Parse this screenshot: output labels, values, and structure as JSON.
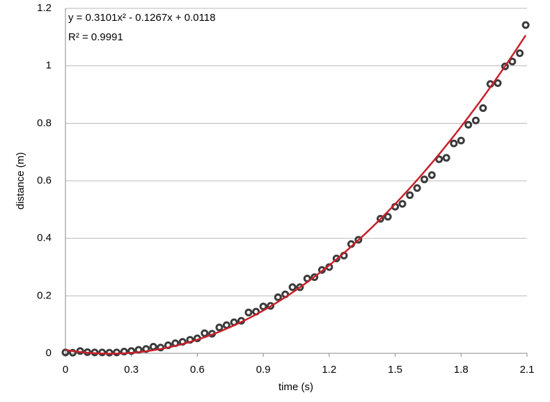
{
  "chart_data": {
    "type": "scatter",
    "equation": "y = 0.3101x² - 0.1267x + 0.0118",
    "r_squared": "R² = 0.9991",
    "x_label": "time (s)",
    "y_label": "distance (m)",
    "series": [
      {
        "color": "#3a3a3a",
        "x": [
          0,
          0.033,
          0.067,
          0.1,
          0.133,
          0.167,
          0.2,
          0.233,
          0.267,
          0.3,
          0.333,
          0.367,
          0.4,
          0.433,
          0.467,
          0.5,
          0.533,
          0.567,
          0.6,
          0.633,
          0.667,
          0.7,
          0.733,
          0.767,
          0.8,
          0.833,
          0.867,
          0.9,
          0.933,
          0.967,
          1.0,
          1.033,
          1.067,
          1.1,
          1.133,
          1.167,
          1.2,
          1.233,
          1.267,
          1.3,
          1.333,
          1.433,
          1.467,
          1.5,
          1.533,
          1.567,
          1.6,
          1.633,
          1.667,
          1.7,
          1.733,
          1.767,
          1.8,
          1.833,
          1.867,
          1.9,
          1.933,
          1.967,
          2.0,
          2.033,
          2.067,
          2.094
        ],
        "values": [
          0.003,
          0.002,
          0.008,
          0.004,
          0.003,
          0.003,
          0.002,
          0.003,
          0.006,
          0.008,
          0.012,
          0.015,
          0.023,
          0.02,
          0.028,
          0.035,
          0.04,
          0.047,
          0.052,
          0.07,
          0.068,
          0.09,
          0.098,
          0.108,
          0.113,
          0.142,
          0.145,
          0.163,
          0.165,
          0.195,
          0.205,
          0.23,
          0.23,
          0.26,
          0.265,
          0.29,
          0.3,
          0.33,
          0.34,
          0.38,
          0.395,
          0.468,
          0.475,
          0.51,
          0.52,
          0.55,
          0.575,
          0.605,
          0.62,
          0.675,
          0.68,
          0.73,
          0.74,
          0.795,
          0.81,
          0.853,
          0.937,
          0.94,
          0.998,
          1.015,
          1.044,
          1.142
        ]
      }
    ],
    "trendline": {
      "color": "#c8202a",
      "coefficients": [
        0.3101,
        -0.1267,
        0.0118
      ]
    },
    "xlim": [
      0,
      2.1
    ],
    "xticks": [
      0,
      0.3,
      0.6,
      0.9,
      1.2,
      1.5,
      1.8,
      2.1
    ],
    "ylim": [
      0,
      1.2
    ],
    "yticks": [
      0,
      0.2,
      0.4,
      0.6,
      0.8,
      1,
      1.2
    ],
    "grid": true
  }
}
